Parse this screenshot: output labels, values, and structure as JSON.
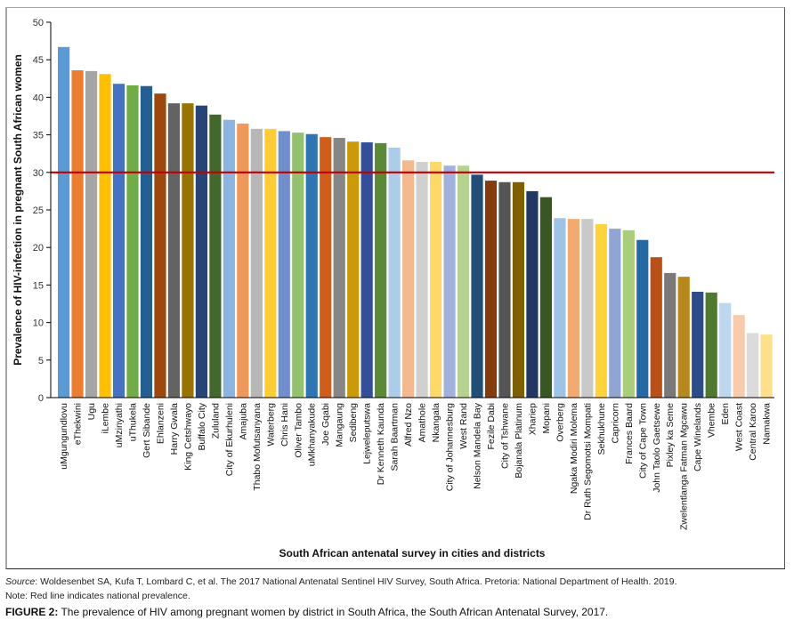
{
  "chart_data": {
    "type": "bar",
    "title": "",
    "xlabel": "South African antenatal survey in cities and districts",
    "ylabel": "Prevalence of HIV-infection in pregnant South African women",
    "ylim": [
      0,
      50
    ],
    "yticks": [
      0,
      5,
      10,
      15,
      20,
      25,
      30,
      35,
      40,
      45,
      50
    ],
    "grid": false,
    "legend": "none",
    "reference_line": {
      "value": 30,
      "color": "#c00000",
      "label": "National prevalence"
    },
    "categories": [
      "uMgungundlovu",
      "eThekwini",
      "Ugu",
      "iLembe",
      "uMzinyathi",
      "uThukela",
      "Gert Sibande",
      "Ehlanzeni",
      "Harry Gwala",
      "King Cetshwayo",
      "Buffalo City",
      "Zululand",
      "City of Ekurhuleni",
      "Amajuba",
      "Thabo Mofutsanyana",
      "Waterberg",
      "Chris Hani",
      "Oliver Tambo",
      "uMkhanyakude",
      "Joe Gqabi",
      "Mangaung",
      "Sedibeng",
      "Lejweleputswa",
      "Dr Kenneth Kaunda",
      "Sarah Baartman",
      "Alfred Nzo",
      "Amathole",
      "Nkangala",
      "City of Johannesburg",
      "West Rand",
      "Nelson Mandela Bay",
      "Fezile Dabi",
      "City of Tshwane",
      "Bojanala Platinum",
      "Xhariep",
      "Mopani",
      "Overberg",
      "Ngaka Modiri Molema",
      "Dr Ruth Segomotsi Mompati",
      "Sekhukhune",
      "Capricorn",
      "Frances Baard",
      "City of Cape Town",
      "John Taolo Gaetsewe",
      "Pixley ka Seme",
      "Zwelentlanga Fatman Mgcawu",
      "Cape Winelands",
      "Vhembe",
      "Eden",
      "West Coast",
      "Central Karoo",
      "Namakwa"
    ],
    "values": [
      46.7,
      43.6,
      43.5,
      43.1,
      41.8,
      41.6,
      41.5,
      40.5,
      39.2,
      39.2,
      38.9,
      37.7,
      37.0,
      36.5,
      35.8,
      35.8,
      35.5,
      35.3,
      35.1,
      34.7,
      34.6,
      34.1,
      34.0,
      33.9,
      33.3,
      31.6,
      31.4,
      31.4,
      30.9,
      30.9,
      29.7,
      28.9,
      28.7,
      28.7,
      27.5,
      26.7,
      23.9,
      23.8,
      23.8,
      23.1,
      22.5,
      22.3,
      21.0,
      18.7,
      16.6,
      16.1,
      14.1,
      14.0,
      12.6,
      11.0,
      8.6,
      8.4
    ],
    "colors": [
      "#5b9bd5",
      "#ed7d31",
      "#a5a5a5",
      "#ffc000",
      "#4472c4",
      "#70ad47",
      "#255e91",
      "#9e480e",
      "#636363",
      "#997300",
      "#264478",
      "#43682b",
      "#8cb4e0",
      "#f1975a",
      "#b7b7b7",
      "#ffcd33",
      "#6f8fcf",
      "#94c16e",
      "#2e75b6",
      "#d35d18",
      "#868686",
      "#cc9a06",
      "#334f9b",
      "#5a8a33",
      "#adcbea",
      "#f4b98f",
      "#d0d0d0",
      "#ffd966",
      "#9fb2dd",
      "#b5d38f",
      "#1f4e79",
      "#843c0c",
      "#555555",
      "#7f6000",
      "#203864",
      "#385723",
      "#9dc3e6",
      "#f4a96e",
      "#c9c9c9",
      "#ffd43b",
      "#8ea5d6",
      "#a9cd78",
      "#2469a6",
      "#bb5016",
      "#7a7878",
      "#b8891a",
      "#2b4d8c",
      "#4f7a2d",
      "#bdd7ee",
      "#f8cbad",
      "#dbdbdb",
      "#ffe08a"
    ]
  },
  "captions": {
    "source_label": "Source",
    "source_text": ": Woldesenbet SA, Kufa T, Lombard C, et al. The 2017 National Antenatal Sentinel HIV Survey, South Africa. Pretoria: National Department of Health. 2019.",
    "note": "Note: Red line indicates national prevalence.",
    "figure_label": "FIGURE 2:",
    "figure_text": " The prevalence of HIV among pregnant women by district in South Africa, the South African Antenatal Survey, 2017."
  }
}
